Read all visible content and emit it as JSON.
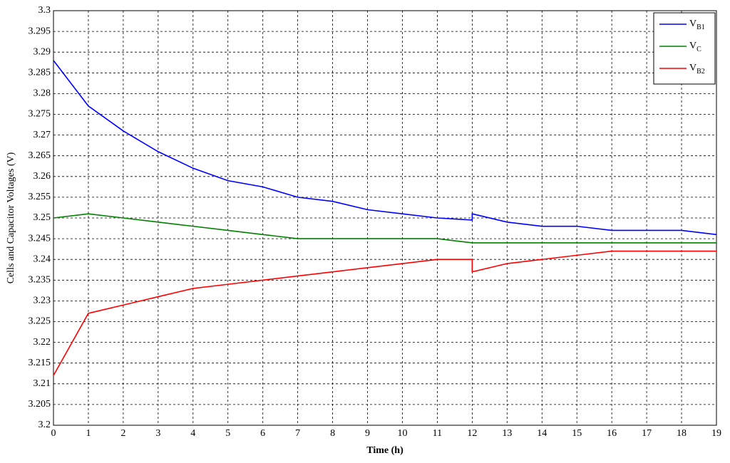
{
  "chart_data": {
    "type": "line",
    "xlabel": "Time (h)",
    "ylabel": "Cells and Capacitor Voltages (V)",
    "x": [
      0,
      1,
      2,
      3,
      4,
      5,
      6,
      7,
      8,
      9,
      10,
      11,
      12,
      12,
      13,
      14,
      15,
      16,
      17,
      18,
      19
    ],
    "series": [
      {
        "name": "VB1",
        "color": "#0000ff",
        "values": [
          3.288,
          3.277,
          3.271,
          3.266,
          3.262,
          3.259,
          3.2575,
          3.255,
          3.254,
          3.252,
          3.251,
          3.25,
          3.2495,
          3.251,
          3.249,
          3.248,
          3.248,
          3.247,
          3.247,
          3.247,
          3.246
        ]
      },
      {
        "name": "VC",
        "color": "#008000",
        "values": [
          3.25,
          3.251,
          3.25,
          3.249,
          3.248,
          3.247,
          3.246,
          3.245,
          3.245,
          3.245,
          3.245,
          3.245,
          3.244,
          3.244,
          3.244,
          3.244,
          3.244,
          3.244,
          3.244,
          3.244,
          3.244
        ]
      },
      {
        "name": "VB2",
        "color": "#ff0000",
        "values": [
          3.212,
          3.227,
          3.229,
          3.231,
          3.233,
          3.234,
          3.235,
          3.236,
          3.237,
          3.238,
          3.239,
          3.24,
          3.24,
          3.237,
          3.239,
          3.24,
          3.241,
          3.242,
          3.242,
          3.242,
          3.242
        ]
      }
    ],
    "xlim": [
      0,
      19
    ],
    "xticks": [
      0,
      1,
      2,
      3,
      4,
      5,
      6,
      7,
      8,
      9,
      10,
      11,
      12,
      13,
      14,
      15,
      16,
      17,
      18,
      19
    ],
    "ylim": [
      3.2,
      3.3
    ],
    "yticks": [
      3.2,
      3.205,
      3.21,
      3.215,
      3.22,
      3.225,
      3.23,
      3.235,
      3.24,
      3.245,
      3.25,
      3.255,
      3.26,
      3.265,
      3.27,
      3.275,
      3.28,
      3.285,
      3.29,
      3.295,
      3.3
    ],
    "grid": true,
    "legend": "upper right"
  }
}
